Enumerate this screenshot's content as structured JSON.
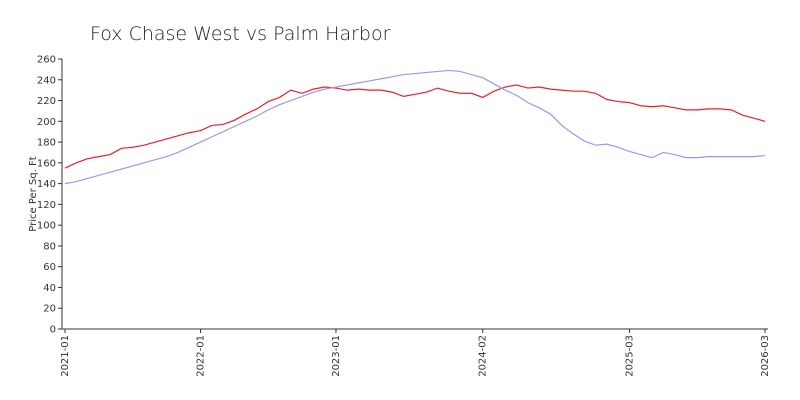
{
  "chart_data": {
    "type": "line",
    "title": "Fox Chase West vs Palm Harbor",
    "y_label": "Price Per Sq. Ft",
    "categories": [
      "2021-01",
      null,
      null,
      null,
      null,
      null,
      null,
      null,
      null,
      null,
      null,
      null,
      "2022-01",
      null,
      null,
      null,
      null,
      null,
      null,
      null,
      null,
      null,
      null,
      null,
      "2023-01",
      null,
      null,
      null,
      null,
      null,
      null,
      null,
      null,
      null,
      null,
      null,
      null,
      "2024-02",
      null,
      null,
      null,
      null,
      null,
      null,
      null,
      null,
      null,
      null,
      null,
      null,
      "2025-03",
      null,
      null,
      null,
      null,
      null,
      null,
      null,
      null,
      null,
      null,
      null,
      "2026-03"
    ],
    "series": [
      {
        "color": "#e8202a",
        "values": [
          155,
          160,
          164,
          166,
          168,
          174,
          175,
          177,
          180,
          183,
          186,
          189,
          191,
          196,
          197,
          201,
          207,
          212,
          219,
          223,
          230,
          227,
          231,
          233,
          232,
          230,
          231,
          230,
          230,
          228,
          224,
          226,
          228,
          232,
          229,
          227,
          227,
          223,
          229,
          233,
          235,
          232,
          233,
          231,
          230,
          229,
          229,
          227,
          221,
          219,
          218,
          215,
          214,
          215,
          213,
          211,
          211,
          212,
          212,
          211,
          206,
          203,
          200
        ]
      },
      {
        "color": "#9999ee",
        "values": [
          140,
          142,
          145,
          148,
          151,
          154,
          157,
          160,
          163,
          166,
          170,
          175,
          180,
          185,
          190,
          195,
          200,
          205,
          211,
          216,
          220,
          224,
          228,
          231,
          233,
          235,
          237,
          239,
          241,
          243,
          245,
          246,
          247,
          248,
          249,
          248,
          245,
          242,
          236,
          230,
          225,
          218,
          213,
          207,
          196,
          188,
          181,
          177,
          178,
          175,
          171,
          168,
          165,
          170,
          168,
          165,
          165,
          166,
          166,
          166,
          166,
          166,
          167
        ]
      }
    ],
    "ylim": [
      0,
      260
    ],
    "yticks": [
      0,
      20,
      40,
      60,
      80,
      100,
      120,
      140,
      160,
      180,
      200,
      220,
      240,
      260
    ]
  }
}
